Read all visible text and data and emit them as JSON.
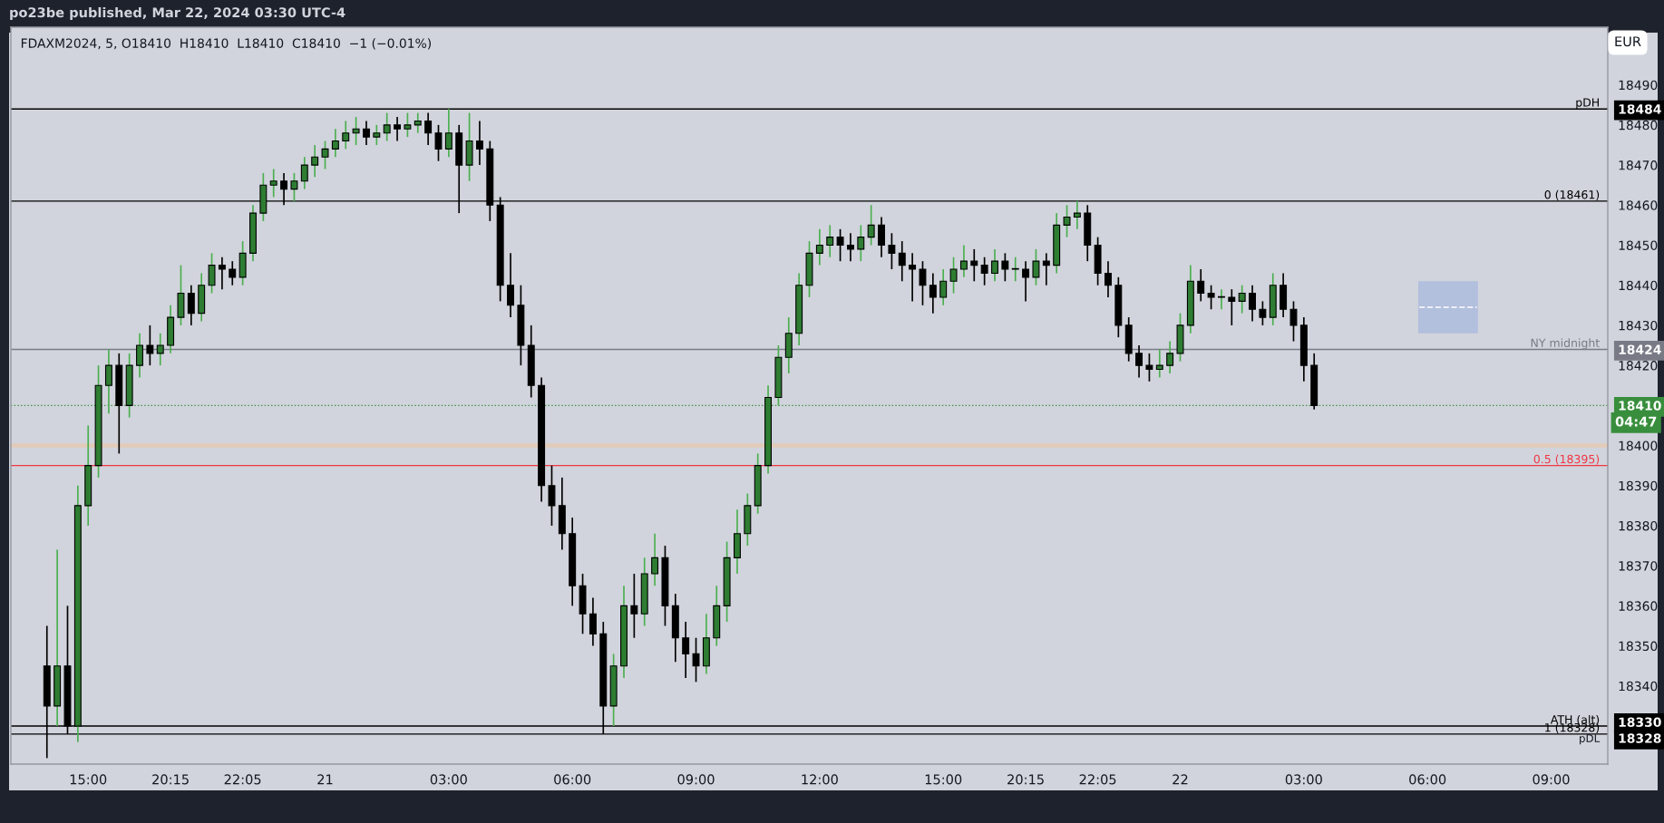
{
  "chart_data": {
    "type": "candlestick",
    "title": "po23be published, Mar 22, 2024 03:30 UTC-4",
    "subtitle": "FDAXM2024, 5, O18410  H18410  L18410  C18410  −1 (−0.01%)",
    "categories": [
      null,
      null,
      null,
      null,
      null,
      null,
      null,
      "15:00",
      null,
      null,
      null,
      null,
      null,
      null,
      null,
      "20:15",
      null,
      null,
      null,
      null,
      null,
      null,
      "22:05",
      null,
      null,
      null,
      null,
      null,
      null,
      null,
      "21",
      null,
      null,
      null,
      null,
      null,
      null,
      null,
      null,
      null,
      null,
      null,
      "03:00",
      null,
      null,
      null,
      null,
      null,
      null,
      null,
      null,
      null,
      null,
      null,
      "06:00",
      null,
      null,
      null,
      null,
      null,
      null,
      null,
      null,
      null,
      null,
      null,
      "09:00",
      null,
      null,
      null,
      null,
      null,
      null,
      null,
      null,
      null,
      null,
      null,
      "12:00",
      null,
      null,
      null,
      null,
      null,
      null,
      null,
      null,
      null,
      null,
      null,
      "15:00",
      null,
      null,
      null,
      null,
      null,
      null,
      null,
      "20:15",
      null,
      null,
      null,
      null,
      null,
      null,
      "22:05",
      null,
      null,
      null,
      null,
      null,
      null,
      null,
      "22",
      null,
      null,
      null,
      null,
      null,
      null,
      null,
      null,
      null,
      null,
      null,
      "03:00",
      null,
      null,
      null,
      null,
      null,
      null,
      null,
      null,
      null,
      null,
      null,
      "06:00",
      null,
      null,
      null,
      null,
      null,
      null,
      null,
      null,
      null,
      null,
      null,
      "09:00",
      null,
      null,
      null,
      null,
      null
    ],
    "ohlc": [
      null,
      null,
      null,
      [
        18345,
        18355,
        18322,
        18335
      ],
      [
        18335,
        18374,
        18330,
        18345
      ],
      [
        18345,
        18360,
        18328,
        18330
      ],
      [
        18330,
        18390,
        18326,
        18385
      ],
      [
        18385,
        18405,
        18380,
        18395
      ],
      [
        18395,
        18420,
        18392,
        18415
      ],
      [
        18415,
        18424,
        18408,
        18420
      ],
      [
        18420,
        18423,
        18398,
        18410
      ],
      [
        18410,
        18423,
        18407,
        18420
      ],
      [
        18420,
        18428,
        18417,
        18425
      ],
      [
        18425,
        18430,
        18420,
        18423
      ],
      [
        18423,
        18428,
        18420,
        18425
      ],
      [
        18425,
        18435,
        18423,
        18432
      ],
      [
        18432,
        18445,
        18430,
        18438
      ],
      [
        18438,
        18440,
        18430,
        18433
      ],
      [
        18433,
        18443,
        18431,
        18440
      ],
      [
        18440,
        18448,
        18438,
        18445
      ],
      [
        18445,
        18447,
        18439,
        18444
      ],
      [
        18444,
        18446,
        18440,
        18442
      ],
      [
        18442,
        18451,
        18440,
        18448
      ],
      [
        18448,
        18460,
        18446,
        18458
      ],
      [
        18458,
        18468,
        18456,
        18465
      ],
      [
        18465,
        18469,
        18462,
        18466
      ],
      [
        18466,
        18468,
        18460,
        18464
      ],
      [
        18464,
        18468,
        18461,
        18466
      ],
      [
        18466,
        18472,
        18464,
        18470
      ],
      [
        18470,
        18475,
        18467,
        18472
      ],
      [
        18472,
        18476,
        18469,
        18474
      ],
      [
        18474,
        18479,
        18472,
        18476
      ],
      [
        18476,
        18481,
        18474,
        18478
      ],
      [
        18478,
        18482,
        18475,
        18479
      ],
      [
        18479,
        18481,
        18475,
        18477
      ],
      [
        18477,
        18480,
        18475,
        18478
      ],
      [
        18478,
        18483,
        18476,
        18480
      ],
      [
        18480,
        18482,
        18476,
        18479
      ],
      [
        18479,
        18483,
        18477,
        18480
      ],
      [
        18480,
        18483,
        18478,
        18481
      ],
      [
        18481,
        18483,
        18475,
        18478
      ],
      [
        18478,
        18480,
        18471,
        18474
      ],
      [
        18474,
        18484,
        18472,
        18478
      ],
      [
        18478,
        18480,
        18458,
        18470
      ],
      [
        18470,
        18483,
        18466,
        18476
      ],
      [
        18476,
        18481,
        18470,
        18474
      ],
      [
        18474,
        18476,
        18456,
        18460
      ],
      [
        18460,
        18462,
        18436,
        18440
      ],
      [
        18440,
        18448,
        18432,
        18435
      ],
      [
        18435,
        18440,
        18420,
        18425
      ],
      [
        18425,
        18430,
        18412,
        18415
      ],
      [
        18415,
        18417,
        18386,
        18390
      ],
      [
        18390,
        18395,
        18380,
        18385
      ],
      [
        18385,
        18392,
        18374,
        18378
      ],
      [
        18378,
        18382,
        18360,
        18365
      ],
      [
        18365,
        18368,
        18353,
        18358
      ],
      [
        18358,
        18362,
        18350,
        18353
      ],
      [
        18353,
        18356,
        18328,
        18335
      ],
      [
        18335,
        18348,
        18330,
        18345
      ],
      [
        18345,
        18365,
        18342,
        18360
      ],
      [
        18360,
        18368,
        18352,
        18358
      ],
      [
        18358,
        18372,
        18355,
        18368
      ],
      [
        18368,
        18378,
        18365,
        18372
      ],
      [
        18372,
        18375,
        18355,
        18360
      ],
      [
        18360,
        18363,
        18346,
        18352
      ],
      [
        18352,
        18356,
        18342,
        18348
      ],
      [
        18348,
        18352,
        18341,
        18345
      ],
      [
        18345,
        18358,
        18343,
        18352
      ],
      [
        18352,
        18365,
        18350,
        18360
      ],
      [
        18360,
        18376,
        18356,
        18372
      ],
      [
        18372,
        18384,
        18368,
        18378
      ],
      [
        18378,
        18388,
        18375,
        18385
      ],
      [
        18385,
        18398,
        18383,
        18395
      ],
      [
        18395,
        18415,
        18393,
        18412
      ],
      [
        18412,
        18425,
        18410,
        18422
      ],
      [
        18422,
        18432,
        18418,
        18428
      ],
      [
        18428,
        18443,
        18425,
        18440
      ],
      [
        18440,
        18451,
        18437,
        18448
      ],
      [
        18448,
        18454,
        18445,
        18450
      ],
      [
        18450,
        18455,
        18447,
        18452
      ],
      [
        18452,
        18454,
        18446,
        18450
      ],
      [
        18450,
        18453,
        18446,
        18449
      ],
      [
        18449,
        18455,
        18446,
        18452
      ],
      [
        18452,
        18460,
        18450,
        18455
      ],
      [
        18455,
        18457,
        18447,
        18450
      ],
      [
        18450,
        18453,
        18444,
        18448
      ],
      [
        18448,
        18451,
        18441,
        18445
      ],
      [
        18445,
        18448,
        18436,
        18444
      ],
      [
        18444,
        18446,
        18435,
        18440
      ],
      [
        18440,
        18443,
        18433,
        18437
      ],
      [
        18437,
        18444,
        18435,
        18441
      ],
      [
        18441,
        18447,
        18438,
        18444
      ],
      [
        18444,
        18450,
        18442,
        18446
      ],
      [
        18446,
        18449,
        18441,
        18445
      ],
      [
        18445,
        18447,
        18440,
        18443
      ],
      [
        18443,
        18449,
        18441,
        18446
      ],
      [
        18446,
        18448,
        18441,
        18444
      ],
      [
        18444,
        18447,
        18441,
        18444
      ],
      [
        18444,
        18446,
        18436,
        18442
      ],
      [
        18442,
        18449,
        18440,
        18446
      ],
      [
        18446,
        18448,
        18440,
        18445
      ],
      [
        18445,
        18458,
        18443,
        18455
      ],
      [
        18455,
        18460,
        18452,
        18457
      ],
      [
        18457,
        18461,
        18454,
        18458
      ],
      [
        18458,
        18460,
        18446,
        18450
      ],
      [
        18450,
        18452,
        18440,
        18443
      ],
      [
        18443,
        18446,
        18437,
        18440
      ],
      [
        18440,
        18442,
        18427,
        18430
      ],
      [
        18430,
        18432,
        18421,
        18423
      ],
      [
        18423,
        18425,
        18417,
        18420
      ],
      [
        18420,
        18423,
        18416,
        18419
      ],
      [
        18419,
        18424,
        18417,
        18420
      ],
      [
        18420,
        18426,
        18418,
        18423
      ],
      [
        18423,
        18433,
        18421,
        18430
      ],
      [
        18430,
        18445,
        18428,
        18441
      ],
      [
        18441,
        18444,
        18436,
        18438
      ],
      [
        18438,
        18440,
        18434,
        18437
      ],
      [
        18437,
        18439,
        18434,
        18437
      ],
      [
        18437,
        18439,
        18430,
        18436
      ],
      [
        18436,
        18440,
        18433,
        18438
      ],
      [
        18438,
        18440,
        18431,
        18434
      ],
      [
        18434,
        18436,
        18430,
        18432
      ],
      [
        18432,
        18443,
        18430,
        18440
      ],
      [
        18440,
        18443,
        18432,
        18434
      ],
      [
        18434,
        18436,
        18426,
        18430
      ],
      [
        18430,
        18432,
        18416,
        18420
      ],
      [
        18420,
        18423,
        18409,
        18410
      ],
      null,
      null,
      null,
      null,
      null,
      null,
      null,
      null,
      null,
      null,
      null,
      null,
      null,
      null,
      null,
      null,
      null,
      null,
      null,
      null,
      null,
      null,
      null,
      null,
      null,
      null,
      null,
      null
    ],
    "ylim": [
      18320.5,
      18504.4
    ],
    "yticks": [
      18328,
      18330,
      18340,
      18350,
      18360,
      18370,
      18380,
      18390,
      18400,
      18410,
      18420,
      18424,
      18430,
      18440,
      18450,
      18460,
      18470,
      18480,
      18484,
      18490
    ],
    "grid": false,
    "ref_lines": [
      {
        "axis": "y",
        "value": 18484,
        "label": "pDH",
        "color": "#000000"
      },
      {
        "axis": "y",
        "value": 18461,
        "label": "0 (18461)",
        "color": "#000000"
      },
      {
        "axis": "y",
        "value": 18424,
        "label": "NY midnight",
        "color": "#787b86"
      },
      {
        "axis": "y",
        "value": 18410,
        "color": "#388e3c",
        "line_style": "dotted"
      },
      {
        "axis": "y",
        "value": 18395,
        "label": "0.5 (18395)",
        "color": "#f23645"
      },
      {
        "axis": "y",
        "value": 18330,
        "label": "ATH (alt)",
        "color": "#000000"
      },
      {
        "axis": "y",
        "value": 18328,
        "label": "1 (18328)",
        "color": "#000000"
      }
    ],
    "bands": [
      {
        "axis": "y",
        "from": 18399.5,
        "to": 18400.5,
        "color": "#e3cbb9"
      }
    ],
    "annotations": [
      "EUR",
      "04:47",
      {
        "text": "pDL",
        "y": 18328
      }
    ]
  }
}
